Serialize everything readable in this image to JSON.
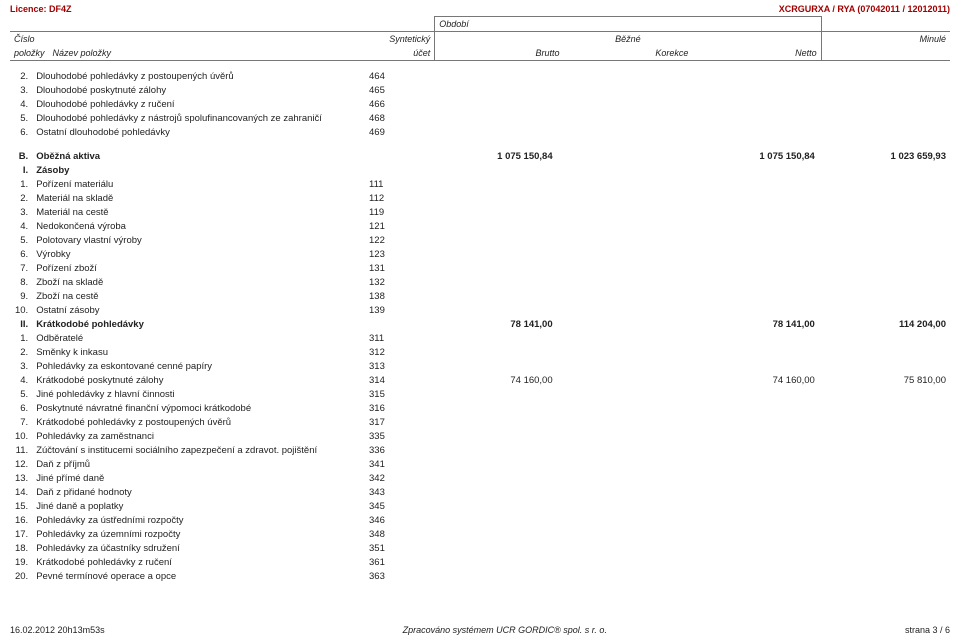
{
  "top": {
    "licence": "Licence: DF4Z",
    "app_id": "XCRGURXA / RYA (07042011 / 12012011)"
  },
  "header": {
    "period": "Období",
    "cislo": "Číslo",
    "syntet": "Syntetický",
    "bezne": "Běžné",
    "minule": "Minulé",
    "polozky": "položky",
    "nazev": "Název položky",
    "ucet": "účet",
    "brutto": "Brutto",
    "korekce": "Korekce",
    "netto": "Netto"
  },
  "groups": [
    {
      "section": null,
      "rows": [
        {
          "n": "2.",
          "name": "Dlouhodobé pohledávky z postoupených úvěrů",
          "acct": "464",
          "brutto": "",
          "korekce": "",
          "netto": "",
          "minule": ""
        },
        {
          "n": "3.",
          "name": "Dlouhodobé poskytnuté zálohy",
          "acct": "465",
          "brutto": "",
          "korekce": "",
          "netto": "",
          "minule": ""
        },
        {
          "n": "4.",
          "name": "Dlouhodobé pohledávky z ručení",
          "acct": "466",
          "brutto": "",
          "korekce": "",
          "netto": "",
          "minule": ""
        },
        {
          "n": "5.",
          "name": "Dlouhodobé pohledávky z nástrojů spolufinancovaných ze zahraničí",
          "acct": "468",
          "brutto": "",
          "korekce": "",
          "netto": "",
          "minule": ""
        },
        {
          "n": "6.",
          "name": "Ostatní dlouhodobé pohledávky",
          "acct": "469",
          "brutto": "",
          "korekce": "",
          "netto": "",
          "minule": ""
        }
      ]
    },
    {
      "section": {
        "n": "B.",
        "name": "Oběžná aktiva",
        "acct": "",
        "brutto": "1 075 150,84",
        "korekce": "",
        "netto": "1 075 150,84",
        "minule": "1 023 659,93"
      },
      "gap_before": true,
      "rows": []
    },
    {
      "section": {
        "n": "I.",
        "name": "Zásoby",
        "acct": "",
        "brutto": "",
        "korekce": "",
        "netto": "",
        "minule": ""
      },
      "rows": [
        {
          "n": "1.",
          "name": "Pořízení materiálu",
          "acct": "111",
          "brutto": "",
          "korekce": "",
          "netto": "",
          "minule": ""
        },
        {
          "n": "2.",
          "name": "Materiál na skladě",
          "acct": "112",
          "brutto": "",
          "korekce": "",
          "netto": "",
          "minule": ""
        },
        {
          "n": "3.",
          "name": "Materiál na cestě",
          "acct": "119",
          "brutto": "",
          "korekce": "",
          "netto": "",
          "minule": ""
        },
        {
          "n": "4.",
          "name": "Nedokončená výroba",
          "acct": "121",
          "brutto": "",
          "korekce": "",
          "netto": "",
          "minule": ""
        },
        {
          "n": "5.",
          "name": "Polotovary vlastní výroby",
          "acct": "122",
          "brutto": "",
          "korekce": "",
          "netto": "",
          "minule": ""
        },
        {
          "n": "6.",
          "name": "Výrobky",
          "acct": "123",
          "brutto": "",
          "korekce": "",
          "netto": "",
          "minule": ""
        },
        {
          "n": "7.",
          "name": "Pořízení zboží",
          "acct": "131",
          "brutto": "",
          "korekce": "",
          "netto": "",
          "minule": ""
        },
        {
          "n": "8.",
          "name": "Zboží na skladě",
          "acct": "132",
          "brutto": "",
          "korekce": "",
          "netto": "",
          "minule": ""
        },
        {
          "n": "9.",
          "name": "Zboží na cestě",
          "acct": "138",
          "brutto": "",
          "korekce": "",
          "netto": "",
          "minule": ""
        },
        {
          "n": "10.",
          "name": "Ostatní zásoby",
          "acct": "139",
          "brutto": "",
          "korekce": "",
          "netto": "",
          "minule": ""
        }
      ]
    },
    {
      "section": {
        "n": "II.",
        "name": "Krátkodobé pohledávky",
        "acct": "",
        "brutto": "78 141,00",
        "korekce": "",
        "netto": "78 141,00",
        "minule": "114 204,00"
      },
      "rows": [
        {
          "n": "1.",
          "name": "Odběratelé",
          "acct": "311",
          "brutto": "",
          "korekce": "",
          "netto": "",
          "minule": ""
        },
        {
          "n": "2.",
          "name": "Směnky k inkasu",
          "acct": "312",
          "brutto": "",
          "korekce": "",
          "netto": "",
          "minule": ""
        },
        {
          "n": "3.",
          "name": "Pohledávky za eskontované cenné papíry",
          "acct": "313",
          "brutto": "",
          "korekce": "",
          "netto": "",
          "minule": ""
        },
        {
          "n": "4.",
          "name": "Krátkodobé poskytnuté zálohy",
          "acct": "314",
          "brutto": "74 160,00",
          "korekce": "",
          "netto": "74 160,00",
          "minule": "75 810,00"
        },
        {
          "n": "5.",
          "name": "Jiné pohledávky z hlavní činnosti",
          "acct": "315",
          "brutto": "",
          "korekce": "",
          "netto": "",
          "minule": ""
        },
        {
          "n": "6.",
          "name": "Poskytnuté návratné finanční výpomoci krátkodobé",
          "acct": "316",
          "brutto": "",
          "korekce": "",
          "netto": "",
          "minule": ""
        },
        {
          "n": "7.",
          "name": "Krátkodobé pohledávky z postoupených úvěrů",
          "acct": "317",
          "brutto": "",
          "korekce": "",
          "netto": "",
          "minule": ""
        },
        {
          "n": "10.",
          "name": "Pohledávky za zaměstnanci",
          "acct": "335",
          "brutto": "",
          "korekce": "",
          "netto": "",
          "minule": ""
        },
        {
          "n": "11.",
          "name": "Zúčtování s institucemi sociálního zapezpečení a zdravot. pojištění",
          "acct": "336",
          "brutto": "",
          "korekce": "",
          "netto": "",
          "minule": ""
        },
        {
          "n": "12.",
          "name": "Daň z příjmů",
          "acct": "341",
          "brutto": "",
          "korekce": "",
          "netto": "",
          "minule": ""
        },
        {
          "n": "13.",
          "name": "Jiné přímé daně",
          "acct": "342",
          "brutto": "",
          "korekce": "",
          "netto": "",
          "minule": ""
        },
        {
          "n": "14.",
          "name": "Daň z přidané hodnoty",
          "acct": "343",
          "brutto": "",
          "korekce": "",
          "netto": "",
          "minule": ""
        },
        {
          "n": "15.",
          "name": "Jiné daně a poplatky",
          "acct": "345",
          "brutto": "",
          "korekce": "",
          "netto": "",
          "minule": ""
        },
        {
          "n": "16.",
          "name": "Pohledávky za ústředními rozpočty",
          "acct": "346",
          "brutto": "",
          "korekce": "",
          "netto": "",
          "minule": ""
        },
        {
          "n": "17.",
          "name": "Pohledávky za územními rozpočty",
          "acct": "348",
          "brutto": "",
          "korekce": "",
          "netto": "",
          "minule": ""
        },
        {
          "n": "18.",
          "name": "Pohledávky za účastníky sdružení",
          "acct": "351",
          "brutto": "",
          "korekce": "",
          "netto": "",
          "minule": ""
        },
        {
          "n": "19.",
          "name": "Krátkodobé pohledávky z ručení",
          "acct": "361",
          "brutto": "",
          "korekce": "",
          "netto": "",
          "minule": ""
        },
        {
          "n": "20.",
          "name": "Pevné termínové operace a opce",
          "acct": "363",
          "brutto": "",
          "korekce": "",
          "netto": "",
          "minule": ""
        }
      ]
    }
  ],
  "footer": {
    "left": "16.02.2012 20h13m53s",
    "center": "Zpracováno systémem  UCR GORDIC® spol. s  r. o.",
    "right": "strana 3 / 6"
  },
  "colors": {
    "accent": "#a00000",
    "text": "#222222",
    "border": "#777777",
    "background": "#ffffff"
  }
}
